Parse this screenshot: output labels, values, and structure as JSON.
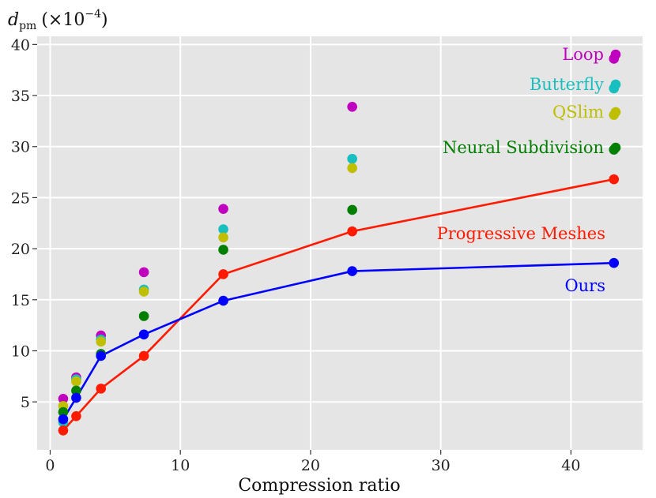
{
  "chart_data": {
    "type": "scatter",
    "title": "",
    "xlabel": "Compression ratio",
    "ylabel_main": "d",
    "ylabel_sub": "pm",
    "ylabel_unit": "(×10",
    "ylabel_exp": "−4",
    "ylabel_close": ")",
    "xlim": [
      -1,
      45.5
    ],
    "ylim": [
      0.3,
      40.8
    ],
    "xticks": [
      0,
      10,
      20,
      30,
      40
    ],
    "yticks": [
      5,
      10,
      15,
      20,
      25,
      30,
      35,
      40
    ],
    "grid": true,
    "background": "#e5e5e5",
    "series": [
      {
        "name": "Loop",
        "color": "#bf00bf",
        "line": false,
        "x": [
          1,
          2,
          3.9,
          7.2,
          13.3,
          23.2,
          43.3
        ],
        "y": [
          5.3,
          7.4,
          11.5,
          17.7,
          23.9,
          33.9,
          38.6
        ]
      },
      {
        "name": "Butterfly",
        "color": "#17bfbf",
        "line": false,
        "x": [
          1,
          2,
          3.9,
          7.2,
          13.3,
          23.2,
          43.3
        ],
        "y": [
          3.0,
          7.2,
          11.1,
          16.0,
          21.9,
          28.8,
          35.7
        ]
      },
      {
        "name": "QSlim",
        "color": "#bfbf00",
        "line": false,
        "x": [
          1,
          2,
          3.9,
          7.2,
          13.3,
          23.2,
          43.3
        ],
        "y": [
          4.6,
          7.0,
          10.9,
          15.8,
          21.1,
          27.9,
          33.1
        ]
      },
      {
        "name": "Neural Subdivision",
        "color": "#007f00",
        "line": false,
        "x": [
          1,
          2,
          3.9,
          7.2,
          13.3,
          23.2,
          43.3
        ],
        "y": [
          4.0,
          6.1,
          9.7,
          13.4,
          19.9,
          23.8,
          29.7
        ]
      },
      {
        "name": "Progressive Meshes",
        "color": "#ff1a00",
        "line": true,
        "x": [
          1,
          2,
          3.9,
          7.2,
          13.3,
          23.2,
          43.3
        ],
        "y": [
          2.2,
          3.6,
          6.3,
          9.5,
          17.5,
          21.7,
          26.8
        ]
      },
      {
        "name": "Ours",
        "color": "#0000ff",
        "line": true,
        "x": [
          1,
          2,
          3.9,
          7.2,
          13.3,
          23.2,
          43.3
        ],
        "y": [
          3.3,
          5.4,
          9.5,
          11.6,
          14.9,
          17.8,
          18.6
        ]
      }
    ],
    "legend": [
      {
        "label": "Loop",
        "color": "#bf00bf"
      },
      {
        "label": "Butterfly",
        "color": "#17bfbf"
      },
      {
        "label": "QSlim",
        "color": "#bfbf00"
      },
      {
        "label": "Neural Subdivision",
        "color": "#007f00"
      }
    ],
    "annotations": [
      {
        "label": "Progressive Meshes",
        "color": "#ff1a00"
      },
      {
        "label": "Ours",
        "color": "#0000ff"
      }
    ]
  }
}
